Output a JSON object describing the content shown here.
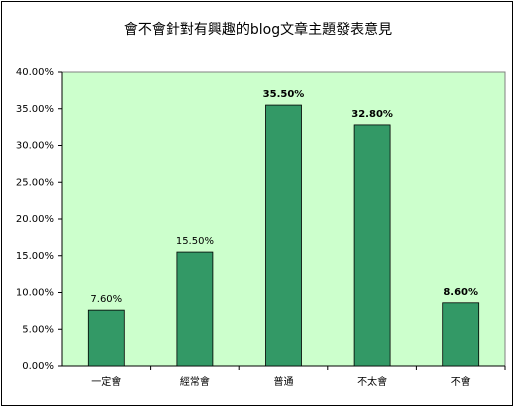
{
  "chart_data": {
    "type": "bar",
    "title": "會不會針對有興趣的blog文章主題發表意見",
    "categories": [
      "一定會",
      "經常會",
      "普通",
      "不太會",
      "不會"
    ],
    "values": [
      7.6,
      15.5,
      35.5,
      32.8,
      8.6
    ],
    "value_labels": [
      "7.60%",
      "15.50%",
      "35.50%",
      "32.80%",
      "8.60%"
    ],
    "color": "#339966",
    "ylim": [
      0,
      40
    ],
    "yticks": [
      {
        "value": 0,
        "label": "0.00%"
      },
      {
        "value": 5,
        "label": "5.00%"
      },
      {
        "value": 10,
        "label": "10.00%"
      },
      {
        "value": 15,
        "label": "15.00%"
      },
      {
        "value": 20,
        "label": "20.00%"
      },
      {
        "value": 25,
        "label": "25.00%"
      },
      {
        "value": 30,
        "label": "30.00%"
      },
      {
        "value": 35,
        "label": "35.00%"
      },
      {
        "value": 40,
        "label": "40.00%"
      }
    ]
  }
}
